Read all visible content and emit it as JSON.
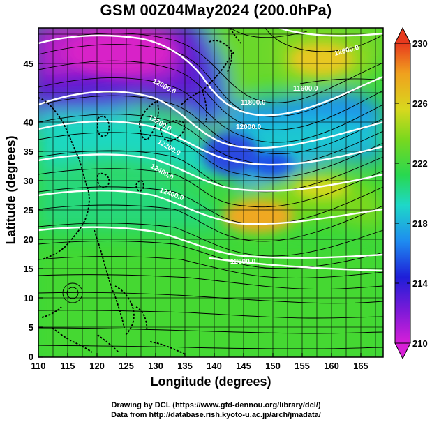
{
  "title": "GSM 00Z04May2024 (200.0hPa)",
  "x_axis": {
    "label": "Longitude (degrees)",
    "ticks": [
      "110",
      "115",
      "120",
      "125",
      "130",
      "135",
      "140",
      "145",
      "150",
      "155",
      "160",
      "165"
    ]
  },
  "y_axis": {
    "label": "Latitude  (degrees)",
    "ticks": [
      "0",
      "5",
      "10",
      "15",
      "20",
      "25",
      "30",
      "35",
      "40",
      "45"
    ]
  },
  "colorbar": {
    "ticks": [
      "210",
      "214",
      "218",
      "222",
      "226",
      "230"
    ],
    "colors": [
      "#d81fd8",
      "#7a1ad8",
      "#1e1ed8",
      "#1e8cf0",
      "#1ed8c8",
      "#28d850",
      "#7ad81e",
      "#d8d81e",
      "#f0a01e",
      "#e83a1e"
    ]
  },
  "contour_labels": [
    "12000.0",
    "12000.0",
    "11800.0",
    "11600.0",
    "12200.0",
    "12200.0",
    "12400.0",
    "12400.0",
    "12600.0",
    "12600.0"
  ],
  "credits": [
    "Drawing by DCL (https://www.gfd-dennou.org/library/dcl/)",
    "Data from http://database.rish.kyoto-u.ac.jp/arch/jmadata/"
  ]
}
